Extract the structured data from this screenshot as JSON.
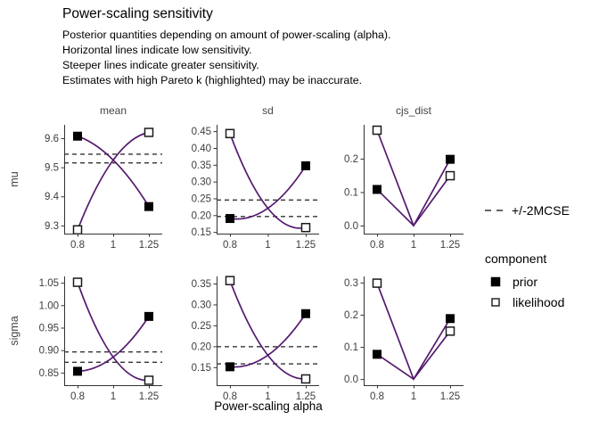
{
  "title": "Power-scaling sensitivity",
  "subtitle_lines": [
    "Posterior quantities depending on amount of power-scaling (alpha).",
    "Horizontal lines indicate low sensitivity.",
    "Steeper lines indicate greater sensitivity.",
    "Estimates with high Pareto k (highlighted) may be inaccurate."
  ],
  "legend": {
    "mcse_label": "+/-2MCSE",
    "component_title": "component",
    "items": [
      {
        "label": "prior",
        "marker": "filled-square"
      },
      {
        "label": "likelihood",
        "marker": "open-square"
      }
    ]
  },
  "colors": {
    "line": "#541a6e",
    "dash": "#333333",
    "axis": "#333333",
    "marker": "#000000",
    "marker_edge": "#1a1a1a"
  },
  "chart_data": {
    "type": "line",
    "title": "Power-scaling sensitivity",
    "xlabel": "Power-scaling alpha",
    "x": [
      0.8,
      1,
      1.25
    ],
    "x_tick_labels": [
      "0.8",
      "1",
      "1.25"
    ],
    "x_scale": "log",
    "grid": false,
    "legend_position": "right",
    "facet_rows": [
      "mu",
      "sigma"
    ],
    "facet_cols": [
      "mean",
      "sd",
      "cjs_dist"
    ],
    "panels": [
      {
        "row": "mu",
        "col": "mean",
        "ylim": [
          9.272,
          9.646
        ],
        "yticks": [
          9.3,
          9.4,
          9.5,
          9.6
        ],
        "ytick_labels": [
          "9.3",
          "9.4",
          "9.5",
          "9.6"
        ],
        "mcse_lines": [
          9.515,
          9.545
        ],
        "shape": "curve",
        "series": [
          {
            "name": "prior",
            "marker": "filled-square",
            "points": [
              [
                0.8,
                9.607
              ],
              [
                1,
                9.525
              ],
              [
                1.25,
                9.365
              ]
            ]
          },
          {
            "name": "likelihood",
            "marker": "open-square",
            "points": [
              [
                0.8,
                9.285
              ],
              [
                1,
                9.525
              ],
              [
                1.25,
                9.62
              ]
            ]
          }
        ]
      },
      {
        "row": "mu",
        "col": "sd",
        "ylim": [
          0.145,
          0.469
        ],
        "yticks": [
          0.15,
          0.2,
          0.25,
          0.3,
          0.35,
          0.4,
          0.45
        ],
        "ytick_labels": [
          "0.15",
          "0.20",
          "0.25",
          "0.30",
          "0.35",
          "0.40",
          "0.45"
        ],
        "mcse_lines": [
          0.196,
          0.245
        ],
        "shape": "curve",
        "series": [
          {
            "name": "prior",
            "marker": "filled-square",
            "points": [
              [
                0.8,
                0.19
              ],
              [
                1,
                0.2205
              ],
              [
                1.25,
                0.347
              ]
            ]
          },
          {
            "name": "likelihood",
            "marker": "open-square",
            "points": [
              [
                0.8,
                0.443
              ],
              [
                1,
                0.2205
              ],
              [
                1.25,
                0.163
              ]
            ]
          }
        ]
      },
      {
        "row": "mu",
        "col": "cjs_dist",
        "ylim": [
          -0.024,
          0.301
        ],
        "yticks": [
          0.0,
          0.1,
          0.2
        ],
        "ytick_labels": [
          "0.0",
          "0.1",
          "0.2"
        ],
        "mcse_lines": [],
        "shape": "vee",
        "series": [
          {
            "name": "prior",
            "marker": "filled-square",
            "points": [
              [
                0.8,
                0.108
              ],
              [
                1,
                0.0
              ],
              [
                1.25,
                0.198
              ]
            ]
          },
          {
            "name": "likelihood",
            "marker": "open-square",
            "points": [
              [
                0.8,
                0.285
              ],
              [
                1,
                0.0
              ],
              [
                1.25,
                0.149
              ]
            ]
          }
        ]
      },
      {
        "row": "sigma",
        "col": "mean",
        "ylim": [
          0.822,
          1.064
        ],
        "yticks": [
          0.85,
          0.9,
          0.95,
          1.0,
          1.05
        ],
        "ytick_labels": [
          "0.85",
          "0.90",
          "0.95",
          "1.00",
          "1.05"
        ],
        "mcse_lines": [
          0.873,
          0.896
        ],
        "shape": "curve",
        "series": [
          {
            "name": "prior",
            "marker": "filled-square",
            "points": [
              [
                0.8,
                0.853
              ],
              [
                1,
                0.8845
              ],
              [
                1.25,
                0.975
              ]
            ]
          },
          {
            "name": "likelihood",
            "marker": "open-square",
            "points": [
              [
                0.8,
                1.051
              ],
              [
                1,
                0.8845
              ],
              [
                1.25,
                0.833
              ]
            ]
          }
        ]
      },
      {
        "row": "sigma",
        "col": "sd",
        "ylim": [
          0.107,
          0.367
        ],
        "yticks": [
          0.15,
          0.2,
          0.25,
          0.3,
          0.35
        ],
        "ytick_labels": [
          "0.15",
          "0.20",
          "0.25",
          "0.30",
          "0.35"
        ],
        "mcse_lines": [
          0.158,
          0.199
        ],
        "shape": "curve",
        "series": [
          {
            "name": "prior",
            "marker": "filled-square",
            "points": [
              [
                0.8,
                0.151
              ],
              [
                1,
                0.1785
              ],
              [
                1.25,
                0.278
              ]
            ]
          },
          {
            "name": "likelihood",
            "marker": "open-square",
            "points": [
              [
                0.8,
                0.357
              ],
              [
                1,
                0.1785
              ],
              [
                1.25,
                0.122
              ]
            ]
          }
        ]
      },
      {
        "row": "sigma",
        "col": "cjs_dist",
        "ylim": [
          -0.019,
          0.319
        ],
        "yticks": [
          0.0,
          0.1,
          0.2,
          0.3
        ],
        "ytick_labels": [
          "0.0",
          "0.1",
          "0.2",
          "0.3"
        ],
        "mcse_lines": [],
        "shape": "vee",
        "series": [
          {
            "name": "prior",
            "marker": "filled-square",
            "points": [
              [
                0.8,
                0.077
              ],
              [
                1,
                0.0
              ],
              [
                1.25,
                0.188
              ]
            ]
          },
          {
            "name": "likelihood",
            "marker": "open-square",
            "points": [
              [
                0.8,
                0.298
              ],
              [
                1,
                0.0
              ],
              [
                1.25,
                0.149
              ]
            ]
          }
        ]
      }
    ]
  }
}
